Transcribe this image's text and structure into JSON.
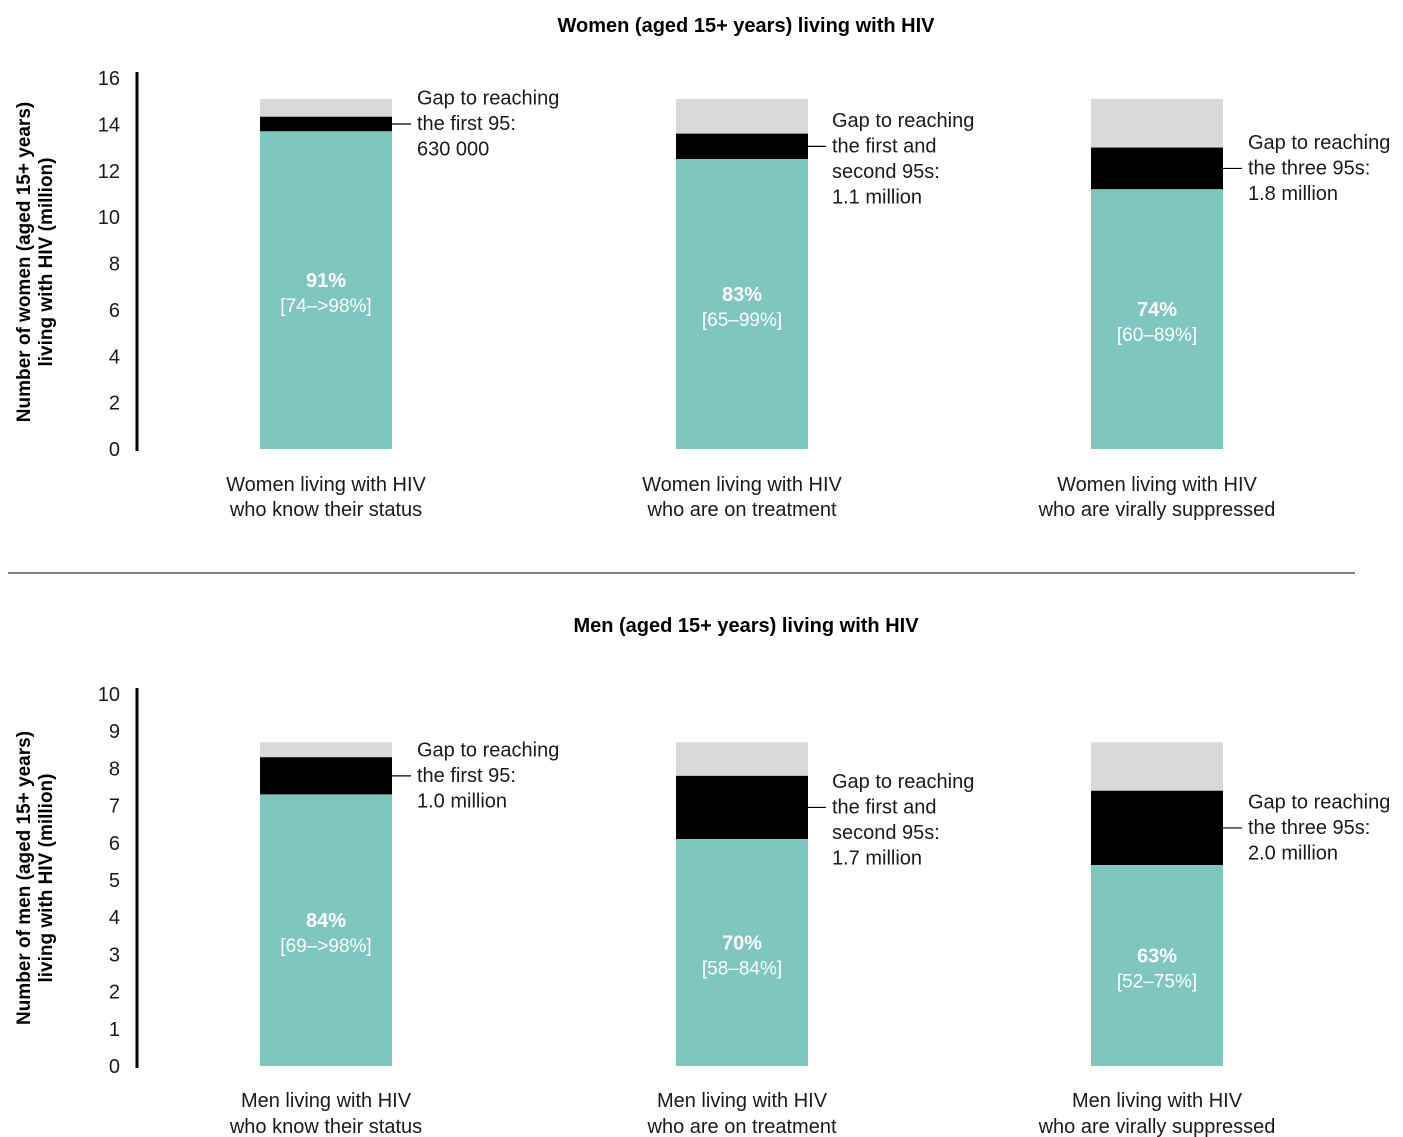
{
  "colors": {
    "achieved": "#7fc6be",
    "gap": "#000000",
    "remaining": "#d9d9d9",
    "divider": "#555555"
  },
  "chart_data": [
    {
      "type": "bar",
      "stacked": true,
      "title": "Women (aged 15+ years) living with HIV",
      "ylabel_lines": [
        "Number of women (aged 15+ years)",
        "living with HIV (million)"
      ],
      "ylim": [
        0,
        16
      ],
      "yticks": [
        0,
        2,
        4,
        6,
        8,
        10,
        12,
        14,
        16
      ],
      "grid": false,
      "categories": [
        [
          "Women living with HIV",
          "who know their status"
        ],
        [
          "Women living with HIV",
          "who are on treatment"
        ],
        [
          "Women living with HIV",
          "who are virally suppressed"
        ]
      ],
      "total": 15.1,
      "series": [
        {
          "values": [
            13.7,
            12.5,
            11.2
          ]
        },
        {
          "values": [
            0.63,
            1.1,
            1.8
          ]
        }
      ],
      "percent_labels": [
        "91%",
        "83%",
        "74%"
      ],
      "range_labels": [
        "[74–>98%]",
        "[65–99%]",
        "[60–89%]"
      ],
      "annotations": [
        [
          "Gap to reaching",
          "the first 95:",
          "630 000"
        ],
        [
          "Gap to reaching",
          "the first and",
          "second 95s:",
          "1.1 million"
        ],
        [
          "Gap to reaching",
          "the three 95s:",
          "1.8 million"
        ]
      ]
    },
    {
      "type": "bar",
      "stacked": true,
      "title": "Men (aged 15+ years) living with HIV",
      "ylabel_lines": [
        "Number of men (aged 15+ years)",
        "living with HIV (million)"
      ],
      "ylim": [
        0,
        10
      ],
      "yticks": [
        0,
        1,
        2,
        3,
        4,
        5,
        6,
        7,
        8,
        9,
        10
      ],
      "grid": false,
      "categories": [
        [
          "Men living with HIV",
          "who know their status"
        ],
        [
          "Men living with HIV",
          "who are on treatment"
        ],
        [
          "Men living with HIV",
          "who are virally suppressed"
        ]
      ],
      "total": 8.7,
      "series": [
        {
          "values": [
            7.3,
            6.1,
            5.4
          ]
        },
        {
          "values": [
            1.0,
            1.7,
            2.0
          ]
        }
      ],
      "percent_labels": [
        "84%",
        "70%",
        "63%"
      ],
      "range_labels": [
        "[69–>98%]",
        "[58–84%]",
        "[52–75%]"
      ],
      "annotations": [
        [
          "Gap to reaching",
          "the first 95:",
          "1.0 million"
        ],
        [
          "Gap to reaching",
          "the first and",
          "second 95s:",
          "1.7 million"
        ],
        [
          "Gap to reaching",
          "the three 95s:",
          "2.0 million"
        ]
      ]
    }
  ]
}
